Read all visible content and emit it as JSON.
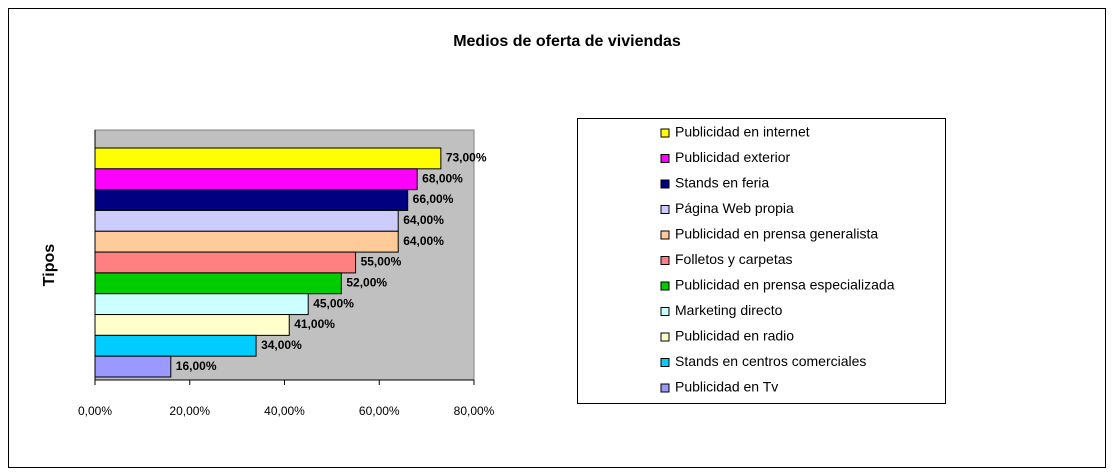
{
  "chart_data": {
    "type": "bar",
    "orientation": "horizontal",
    "title": "Medios de oferta de viviendas",
    "y_label": "Tipos",
    "xlim": [
      0,
      80
    ],
    "xticks": [
      {
        "value": 0,
        "label": "0,00%"
      },
      {
        "value": 20,
        "label": "20,00%"
      },
      {
        "value": 40,
        "label": "40,00%"
      },
      {
        "value": 60,
        "label": "60,00%"
      },
      {
        "value": 80,
        "label": "80,00%"
      }
    ],
    "grid": false,
    "plot_background": "#c0c0c0",
    "legend": "right",
    "series": [
      {
        "name": "Publicidad en internet",
        "color": "#ffff00",
        "values": [
          73
        ],
        "value_labels": [
          "73,00%"
        ]
      },
      {
        "name": "Publicidad exterior",
        "color": "#ff00ff",
        "values": [
          68
        ],
        "value_labels": [
          "68,00%"
        ]
      },
      {
        "name": "Stands en feria",
        "color": "#000080",
        "values": [
          66
        ],
        "value_labels": [
          "66,00%"
        ]
      },
      {
        "name": "Página Web propia",
        "color": "#ccccff",
        "values": [
          64
        ],
        "value_labels": [
          "64,00%"
        ]
      },
      {
        "name": "Publicidad en prensa generalista",
        "color": "#ffcc99",
        "values": [
          64
        ],
        "value_labels": [
          "64,00%"
        ]
      },
      {
        "name": "Folletos y carpetas",
        "color": "#ff8080",
        "values": [
          55
        ],
        "value_labels": [
          "55,00%"
        ]
      },
      {
        "name": "Publicidad en prensa especializada",
        "color": "#00cc00",
        "values": [
          52
        ],
        "value_labels": [
          "52,00%"
        ]
      },
      {
        "name": "Marketing directo",
        "color": "#ccffff",
        "values": [
          45
        ],
        "value_labels": [
          "45,00%"
        ]
      },
      {
        "name": "Publicidad en radio",
        "color": "#ffffcc",
        "values": [
          41
        ],
        "value_labels": [
          "41,00%"
        ]
      },
      {
        "name": "Stands en centros comerciales",
        "color": "#00ccff",
        "values": [
          34
        ],
        "value_labels": [
          "34,00%"
        ]
      },
      {
        "name": "Publicidad en Tv",
        "color": "#9999ff",
        "values": [
          16
        ],
        "value_labels": [
          "16,00%"
        ]
      }
    ]
  }
}
